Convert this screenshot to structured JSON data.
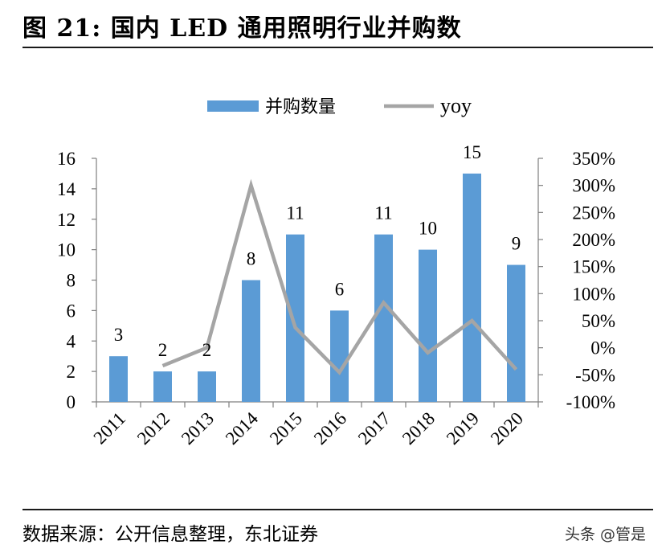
{
  "title": "图 21: 国内 LED 通用照明行业并购数",
  "source": "数据来源：公开信息整理，东北证券",
  "watermark": "头条 @管是",
  "colors": {
    "bar": "#5b9bd5",
    "line": "#a5a5a5"
  },
  "chart_data": {
    "type": "bar",
    "categories": [
      "2011",
      "2012",
      "2013",
      "2014",
      "2015",
      "2016",
      "2017",
      "2018",
      "2019",
      "2020"
    ],
    "series": [
      {
        "name": "并购数量",
        "type": "bar",
        "axis": "left",
        "values": [
          3,
          2,
          2,
          8,
          11,
          6,
          11,
          10,
          15,
          9
        ]
      },
      {
        "name": "yoy",
        "type": "line",
        "axis": "right",
        "values": [
          null,
          -33.3,
          0,
          300,
          37.5,
          -45.5,
          83.3,
          -9.1,
          50,
          -40
        ]
      }
    ],
    "left_axis": {
      "ylim": [
        0,
        16
      ],
      "ticks": [
        "0",
        "2",
        "4",
        "6",
        "8",
        "10",
        "12",
        "14",
        "16"
      ]
    },
    "right_axis": {
      "ylim": [
        -100,
        350
      ],
      "ticks": [
        "-100%",
        "-50%",
        "0%",
        "50%",
        "100%",
        "150%",
        "200%",
        "250%",
        "300%",
        "350%"
      ]
    },
    "data_labels": [
      "3",
      "2",
      "2",
      "8",
      "11",
      "6",
      "11",
      "10",
      "15",
      "9"
    ],
    "legend_position": "top",
    "grid": false
  }
}
